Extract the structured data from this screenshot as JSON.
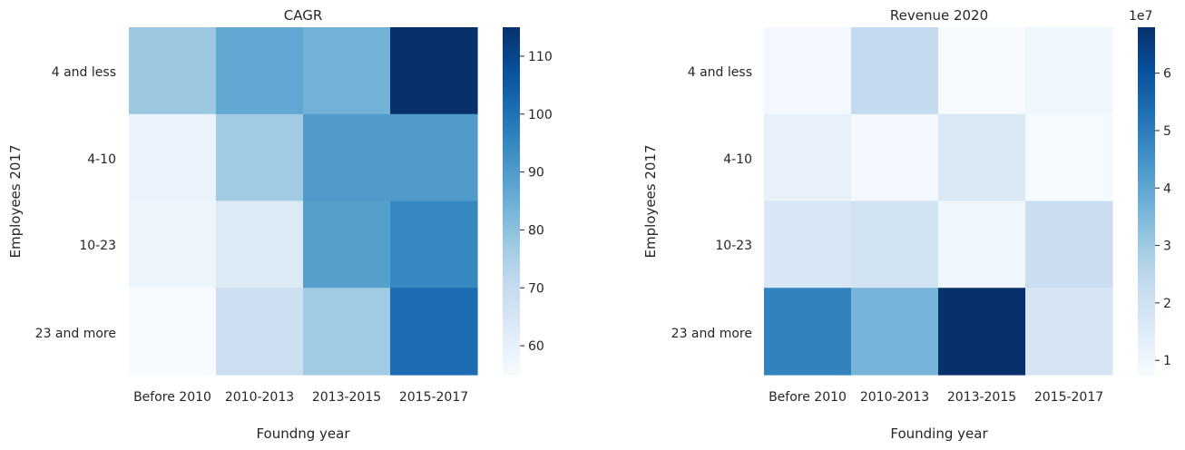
{
  "chart_data": [
    {
      "type": "heatmap",
      "title": "CAGR",
      "xlabel": "Foundng year",
      "ylabel": "Employees 2017",
      "x_categories": [
        "Before 2010",
        "2010-2013",
        "2013-2015",
        "2015-2017"
      ],
      "y_categories": [
        "4 and less",
        "4-10",
        "10-23",
        "23 and more"
      ],
      "values": [
        [
          78,
          87,
          84,
          115
        ],
        [
          59,
          77,
          90,
          90
        ],
        [
          58,
          63,
          89,
          95
        ],
        [
          55,
          68,
          77,
          101
        ]
      ],
      "colorbar": {
        "vmin": 55,
        "vmax": 115,
        "ticks": [
          60,
          70,
          80,
          90,
          100,
          110
        ],
        "tick_labels": [
          "60",
          "70",
          "80",
          "90",
          "100",
          "110"
        ]
      },
      "colormap": "Blues",
      "grid": false
    },
    {
      "type": "heatmap",
      "title": "Revenue 2020",
      "xlabel": "Founding year",
      "ylabel": "Employees 2017",
      "x_categories": [
        "Before 2010",
        "2010-2013",
        "2013-2015",
        "2015-2017"
      ],
      "y_categories": [
        "4 and less",
        "4-10",
        "10-23",
        "23 and more"
      ],
      "values": [
        [
          0.9,
          2.3,
          0.7,
          1.0
        ],
        [
          1.2,
          0.9,
          1.6,
          0.8
        ],
        [
          1.7,
          1.9,
          1.0,
          2.1
        ],
        [
          4.9,
          3.6,
          6.8,
          1.8
        ]
      ],
      "colorbar": {
        "vmin": 0.75,
        "vmax": 6.8,
        "ticks": [
          1,
          2,
          3,
          4,
          5,
          6
        ],
        "tick_labels": [
          "1",
          "2",
          "3",
          "4",
          "5",
          "6"
        ],
        "offset_label": "1e7"
      },
      "colormap": "Blues",
      "grid": false
    }
  ]
}
